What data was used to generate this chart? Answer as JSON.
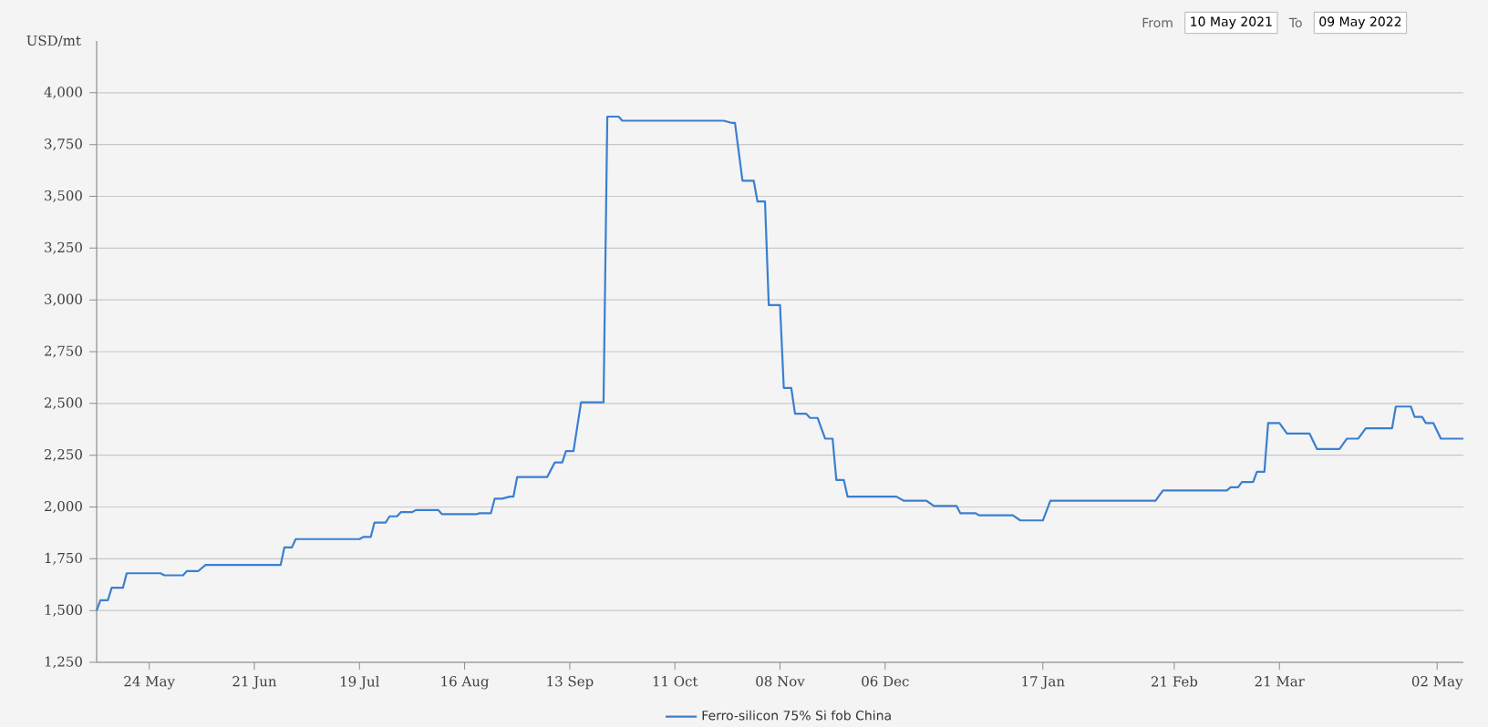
{
  "chart_data": {
    "type": "line",
    "ylabel": "USD/mt",
    "annotations": [
      "From",
      "10 May 2021",
      "To",
      "09 May 2022"
    ],
    "x": [
      "2021-05-10",
      "2021-05-11",
      "2021-05-13",
      "2021-05-14",
      "2021-05-17",
      "2021-05-18",
      "2021-05-27",
      "2021-05-28",
      "2021-06-02",
      "2021-06-03",
      "2021-06-06",
      "2021-06-08",
      "2021-06-28",
      "2021-06-29",
      "2021-07-01",
      "2021-07-02",
      "2021-07-19",
      "2021-07-20",
      "2021-07-22",
      "2021-07-23",
      "2021-07-26",
      "2021-07-27",
      "2021-07-29",
      "2021-07-30",
      "2021-08-02",
      "2021-08-03",
      "2021-08-09",
      "2021-08-10",
      "2021-08-19",
      "2021-08-20",
      "2021-08-23",
      "2021-08-24",
      "2021-08-26",
      "2021-08-28",
      "2021-08-29",
      "2021-08-30",
      "2021-09-07",
      "2021-09-09",
      "2021-09-11",
      "2021-09-12",
      "2021-09-14",
      "2021-09-16",
      "2021-09-22",
      "2021-09-23",
      "2021-09-26",
      "2021-09-27",
      "2021-10-24",
      "2021-10-26",
      "2021-10-27",
      "2021-10-29",
      "2021-11-01",
      "2021-11-02",
      "2021-11-04",
      "2021-11-05",
      "2021-11-08",
      "2021-11-09",
      "2021-11-11",
      "2021-11-12",
      "2021-11-15",
      "2021-11-16",
      "2021-11-18",
      "2021-11-20",
      "2021-11-22",
      "2021-11-23",
      "2021-11-25",
      "2021-11-26",
      "2021-12-09",
      "2021-12-11",
      "2021-12-17",
      "2021-12-19",
      "2021-12-25",
      "2021-12-26",
      "2021-12-30",
      "2021-12-31",
      "2022-01-09",
      "2022-01-11",
      "2022-01-17",
      "2022-01-19",
      "2022-02-16",
      "2022-02-18",
      "2022-03-07",
      "2022-03-08",
      "2022-03-10",
      "2022-03-11",
      "2022-03-14",
      "2022-03-15",
      "2022-03-17",
      "2022-03-18",
      "2022-03-21",
      "2022-03-23",
      "2022-03-29",
      "2022-03-31",
      "2022-04-06",
      "2022-04-08",
      "2022-04-11",
      "2022-04-13",
      "2022-04-20",
      "2022-04-21",
      "2022-04-25",
      "2022-04-26",
      "2022-04-28",
      "2022-04-29",
      "2022-05-01",
      "2022-05-03",
      "2022-05-09"
    ],
    "series": [
      {
        "name": "Ferro-silicon 75% Si fob China",
        "color": "#3a7fd0",
        "values": [
          1500,
          1550,
          1550,
          1610,
          1610,
          1680,
          1680,
          1670,
          1670,
          1690,
          1690,
          1720,
          1720,
          1805,
          1805,
          1845,
          1845,
          1855,
          1855,
          1925,
          1925,
          1955,
          1955,
          1975,
          1975,
          1985,
          1985,
          1965,
          1965,
          1970,
          1970,
          2040,
          2040,
          2050,
          2050,
          2145,
          2145,
          2215,
          2215,
          2270,
          2270,
          2505,
          2505,
          3885,
          3885,
          3865,
          3865,
          3855,
          3855,
          3575,
          3575,
          3475,
          3475,
          2975,
          2975,
          2575,
          2575,
          2450,
          2450,
          2430,
          2430,
          2330,
          2330,
          2130,
          2130,
          2050,
          2050,
          2030,
          2030,
          2005,
          2005,
          1970,
          1970,
          1960,
          1960,
          1935,
          1935,
          2030,
          2030,
          2080,
          2080,
          2095,
          2095,
          2120,
          2120,
          2170,
          2170,
          2405,
          2405,
          2355,
          2355,
          2280,
          2280,
          2330,
          2330,
          2380,
          2380,
          2485,
          2485,
          2435,
          2435,
          2405,
          2405,
          2330,
          2330
        ]
      }
    ],
    "xlim": [
      "2021-05-10",
      "2022-05-09"
    ],
    "xticks": [
      {
        "value": "2021-05-24",
        "label": "24 May"
      },
      {
        "value": "2021-06-21",
        "label": "21 Jun"
      },
      {
        "value": "2021-07-19",
        "label": "19 Jul"
      },
      {
        "value": "2021-08-16",
        "label": "16 Aug"
      },
      {
        "value": "2021-09-13",
        "label": "13 Sep"
      },
      {
        "value": "2021-10-11",
        "label": "11 Oct"
      },
      {
        "value": "2021-11-08",
        "label": "08 Nov"
      },
      {
        "value": "2021-12-06",
        "label": "06 Dec"
      },
      {
        "value": "2022-01-17",
        "label": "17 Jan"
      },
      {
        "value": "2022-02-21",
        "label": "21 Feb"
      },
      {
        "value": "2022-03-21",
        "label": "21 Mar"
      },
      {
        "value": "2022-05-02",
        "label": "02 May"
      }
    ],
    "ylim": [
      1250,
      4250
    ],
    "yticks": [
      {
        "value": 1250,
        "label": "1,250"
      },
      {
        "value": 1500,
        "label": "1,500"
      },
      {
        "value": 1750,
        "label": "1,750"
      },
      {
        "value": 2000,
        "label": "2,000"
      },
      {
        "value": 2250,
        "label": "2,250"
      },
      {
        "value": 2500,
        "label": "2,500"
      },
      {
        "value": 2750,
        "label": "2,750"
      },
      {
        "value": 3000,
        "label": "3,000"
      },
      {
        "value": 3250,
        "label": "3,250"
      },
      {
        "value": 3500,
        "label": "3,500"
      },
      {
        "value": 3750,
        "label": "3,750"
      },
      {
        "value": 4000,
        "label": "4,000"
      }
    ],
    "grid": "y",
    "legend": "bottom",
    "marker": "none",
    "line_style": "solid"
  }
}
